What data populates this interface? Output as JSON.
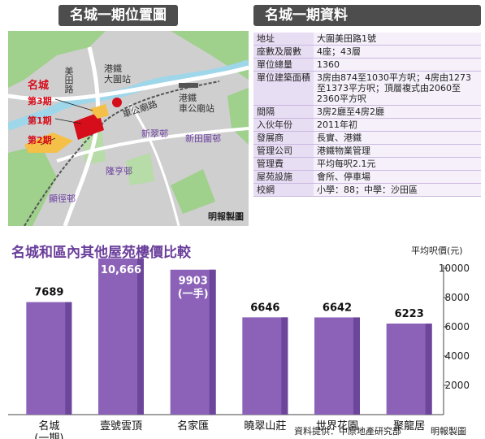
{
  "map_panel": {
    "title": "名城一期位置圖",
    "labels": {
      "meitian_road": "美田路",
      "station": "港鐵\n大圍站",
      "che_kung_road": "車公廟路",
      "che_kung_station": "港鐵\n車公廟站",
      "mingcheng": "名城",
      "phase3": "第3期",
      "phase1": "第1期",
      "phase2": "第2期",
      "sun_chui": "新翠邨",
      "sun_tin_wai": "新田圍邨",
      "lung_hang": "隆亨邨",
      "hin_keng": "顯徑邨"
    },
    "credit": "明報製圖"
  },
  "facts_panel": {
    "title": "名城一期資料",
    "rows": [
      {
        "key": "地址",
        "value": "大圍美田路1號"
      },
      {
        "key": "座數及層數",
        "value": "4座；43層"
      },
      {
        "key": "單位總量",
        "value": "1360"
      },
      {
        "key": "單位建築面積",
        "value": "3房由874至1030平方呎；4房由1273至1373平方呎；頂層複式由2060至2360平方呎"
      },
      {
        "key": "間隔",
        "value": "3房2廳至4房2廳"
      },
      {
        "key": "入伙年份",
        "value": "2011年初"
      },
      {
        "key": "發展商",
        "value": "長實、港鐵"
      },
      {
        "key": "管理公司",
        "value": "港鐵物業管理"
      },
      {
        "key": "管理費",
        "value": "平均每呎2.1元"
      },
      {
        "key": "屋苑設施",
        "value": "會所、停車場"
      },
      {
        "key": "校網",
        "value": "小學：88；中學：沙田區"
      }
    ]
  },
  "chart_data": {
    "type": "bar",
    "title": "名城和區內其他屋苑樓價比較",
    "ylabel": "平均呎價(元)",
    "ylim": [
      0,
      10000
    ],
    "yticks": [
      2000,
      4000,
      6000,
      8000,
      10000
    ],
    "categories": [
      "名城\n(一期)",
      "壹號雲頂",
      "名家匯",
      "曉翠山莊",
      "世界花園",
      "聚龍居"
    ],
    "values": [
      7689,
      10666,
      9903,
      6646,
      6642,
      6223
    ],
    "value_labels": [
      "7689",
      "10,666",
      "9903\n(一手)",
      "6646",
      "6642",
      "6223"
    ],
    "bar_color": "#8b62b8",
    "grid": false
  },
  "footer": {
    "source": "資料提供：中原地產研究部",
    "credit": "明報製圖"
  }
}
